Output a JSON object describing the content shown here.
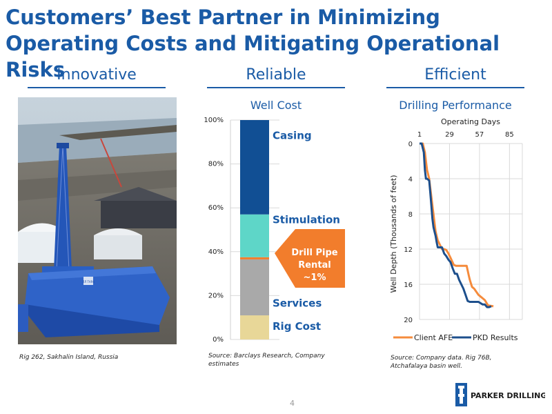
{
  "title": "Customers’ Best Partner in Minimizing Operating Costs and Mitigating Operational Risks",
  "columns": [
    {
      "heading": "Innovative"
    },
    {
      "heading": "Reliable"
    },
    {
      "heading": "Efficient"
    }
  ],
  "photo": {
    "caption": "Rig 262, Sakhalin Island, Russia",
    "rig_sign": "ЛЛ ТАРА"
  },
  "well_cost": {
    "subtitle": "Well Cost",
    "source": "Source: Barclays Research, Company estimates",
    "callout": "Drill Pipe Rental ~1%",
    "callout_lines": [
      "Drill Pipe",
      "Rental",
      "~1%"
    ]
  },
  "drilling": {
    "subtitle": "Drilling Performance",
    "source": "Source: Company data. Rig 76B, Atchafalaya basin well."
  },
  "page_number": "4",
  "logo": {
    "text": "PARKER DRILLING"
  },
  "colors": {
    "brand_blue": "#1a5ba6",
    "casing": "#114f94",
    "stimulation": "#5ed6c8",
    "drill_pipe": "#f27d2c",
    "services": "#a9a9a9",
    "rig_cost": "#e8d798",
    "client_afe": "#f58b3c",
    "pkd_results": "#1d4f8c"
  },
  "chart_data": [
    {
      "type": "bar",
      "stacked": true,
      "title": "Well Cost",
      "ylim": [
        0,
        100
      ],
      "ytick_labels": [
        "0%",
        "20%",
        "40%",
        "60%",
        "80%",
        "100%"
      ],
      "yticks": [
        0,
        20,
        40,
        60,
        80,
        100
      ],
      "grid": true,
      "series": [
        {
          "name": "Rig Cost",
          "value": 11,
          "color": "#e8d798"
        },
        {
          "name": "Services",
          "value": 25.5,
          "color": "#a9a9a9"
        },
        {
          "name": "Drill Pipe Rental",
          "value": 1,
          "color": "#f27d2c"
        },
        {
          "name": "Stimulation",
          "value": 19.5,
          "color": "#5ed6c8"
        },
        {
          "name": "Casing",
          "value": 43,
          "color": "#114f94"
        }
      ],
      "segment_labels": [
        {
          "text": "Casing",
          "value": 93
        },
        {
          "text": "Stimulation",
          "value": 54.5
        },
        {
          "text": "Services",
          "value": 16.5
        },
        {
          "text": "Rig Cost",
          "value": 6
        }
      ]
    },
    {
      "type": "line",
      "title": "Drilling Performance",
      "xlabel": "Operating Days",
      "ylabel": "Well Depth (Thousands of feet)",
      "xticks": [
        1,
        29,
        57,
        85
      ],
      "xlim": [
        1,
        97
      ],
      "yticks": [
        0,
        4,
        8,
        12,
        16,
        20
      ],
      "ylim": [
        0,
        20
      ],
      "y_inverted": true,
      "x_axis_position": "top",
      "grid": true,
      "legend": "bottom",
      "series": [
        {
          "name": "Client AFE",
          "color": "#f58b3c",
          "x": [
            1,
            4,
            6,
            7,
            8,
            10,
            11,
            12,
            13,
            14,
            15,
            16,
            17,
            18,
            20,
            22,
            24,
            26,
            28,
            30,
            33,
            35,
            40,
            45,
            47,
            48,
            50,
            52,
            56,
            58,
            60,
            62,
            65,
            70
          ],
          "y": [
            0,
            0,
            1,
            2,
            3,
            4,
            5,
            6,
            7,
            8,
            9,
            10,
            10.5,
            11,
            11.5,
            12,
            12,
            12.1,
            12.5,
            13,
            13.8,
            13.9,
            13.9,
            13.9,
            15,
            15.5,
            16.3,
            16.5,
            17.2,
            17.4,
            17.6,
            17.8,
            18.4,
            18.5
          ]
        },
        {
          "name": "PKD Results",
          "color": "#1d4f8c",
          "x": [
            1,
            3,
            5,
            6,
            7,
            8,
            10,
            11,
            12,
            13,
            14,
            15,
            16,
            17,
            18,
            20,
            22,
            24,
            26,
            28,
            30,
            32,
            34,
            36,
            38,
            40,
            42,
            44,
            46,
            48,
            52,
            56,
            60,
            62,
            64,
            66,
            68
          ],
          "y": [
            0,
            0,
            1,
            3,
            4,
            4,
            4.2,
            5.5,
            7,
            8.5,
            9.5,
            10,
            10.5,
            11.2,
            11.8,
            11.8,
            11.8,
            12.5,
            12.8,
            13.2,
            13.5,
            14.2,
            14.8,
            14.8,
            15.5,
            16,
            16.5,
            17.2,
            17.9,
            18,
            18,
            18,
            18.3,
            18.3,
            18.6,
            18.6,
            18.5
          ]
        }
      ]
    }
  ]
}
